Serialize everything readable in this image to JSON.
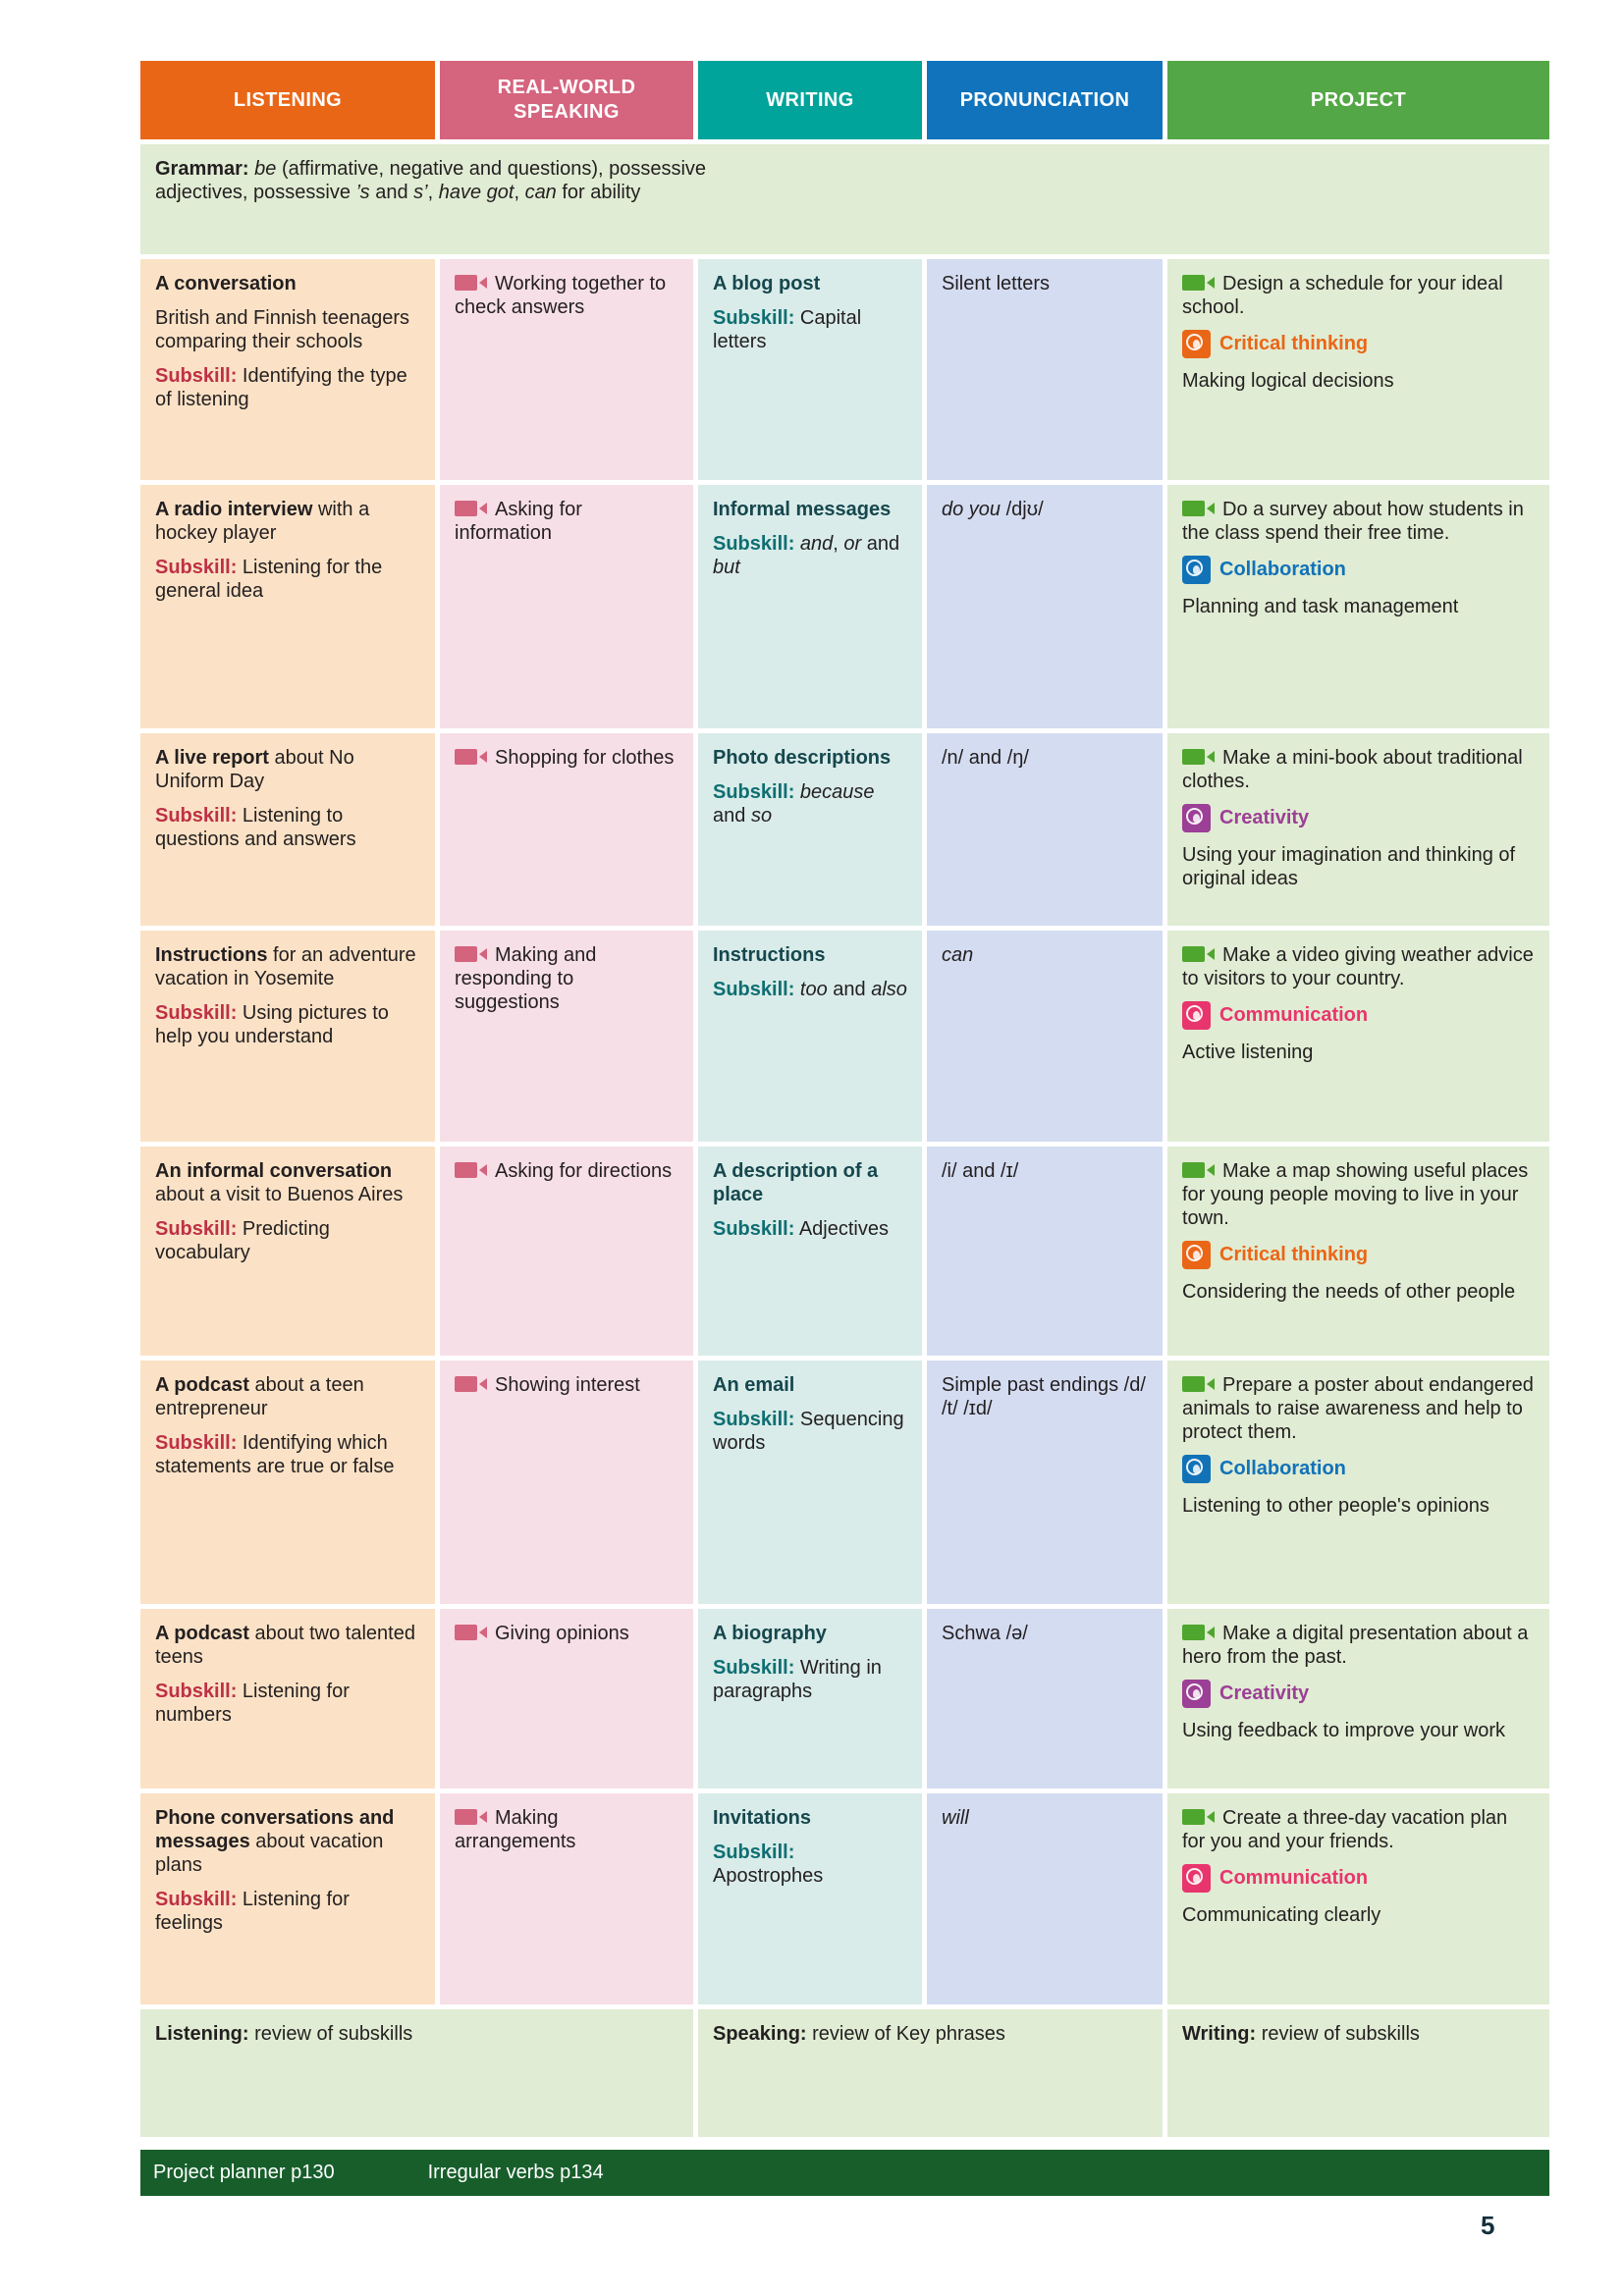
{
  "header": {
    "columns": [
      {
        "label": "LISTENING",
        "color": "#EA6617"
      },
      {
        "label": "REAL-WORLD SPEAKING",
        "color": "#D5647F"
      },
      {
        "label": "WRITING",
        "color": "#00A49A"
      },
      {
        "label": "PRONUNCIATION",
        "color": "#1173BC"
      },
      {
        "label": "PROJECT",
        "color": "#54A746"
      }
    ]
  },
  "colors": {
    "listening_bg": "#FBE2C6",
    "speaking_bg": "#F7DFE7",
    "writing_bg": "#D9ECE9",
    "pronunciation_bg": "#D4DCF1",
    "project_bg": "#E0ECD3",
    "subskill_red": "#BE3045",
    "subskill_teal": "#0E6E72",
    "critical_thinking": "#EA6617",
    "collaboration": "#1272B8",
    "creativity": "#9C3F96",
    "communication": "#E8356D",
    "footer_green": "#175E2B"
  },
  "grammar": [
    [
      {
        "t": "Grammar:",
        "s": "b"
      },
      {
        "t": " "
      },
      {
        "t": "be",
        "s": "i"
      },
      {
        "t": " (affirmative, negative and questions), possessive adjectives, possessive "
      },
      {
        "t": "’s",
        "s": "i"
      },
      {
        "t": " and "
      },
      {
        "t": "s’",
        "s": "i"
      },
      {
        "t": ", "
      },
      {
        "t": "have got",
        "s": "i"
      },
      {
        "t": ", "
      },
      {
        "t": "can",
        "s": "i"
      },
      {
        "t": " for ability"
      }
    ]
  ],
  "rows": [
    {
      "listening": [
        [
          {
            "t": "A conversation",
            "s": "b"
          }
        ],
        [
          {
            "t": "British and Finnish teenagers comparing their schools"
          }
        ],
        [
          {
            "t": "Subskill:",
            "s": "lred"
          },
          {
            "t": " Identifying the type of listening"
          }
        ]
      ],
      "speaking": [
        [
          {
            "ic": "cam-pink"
          },
          {
            "t": "Working together to check answers"
          }
        ]
      ],
      "writing": [
        [
          {
            "t": "A blog post",
            "s": "bteal"
          }
        ],
        [
          {
            "t": "Subskill:",
            "s": "lteal"
          },
          {
            "t": " Capital letters"
          }
        ]
      ],
      "pronunciation": [
        [
          {
            "t": "Silent letters"
          }
        ]
      ],
      "project": [
        [
          {
            "ic": "cam-green"
          },
          {
            "t": "Design a schedule for your ideal school."
          }
        ],
        [
          {
            "ic": "ct"
          },
          {
            "t": "Critical thinking",
            "s": "lct"
          }
        ],
        [
          {
            "t": "Making logical decisions"
          }
        ]
      ]
    },
    {
      "listening": [
        [
          {
            "t": "A radio interview",
            "s": "b"
          },
          {
            "t": " with a hockey player"
          }
        ],
        [
          {
            "t": "Subskill:",
            "s": "lred"
          },
          {
            "t": " Listening for the general idea"
          }
        ]
      ],
      "speaking": [
        [
          {
            "ic": "cam-pink"
          },
          {
            "t": "Asking for information"
          }
        ]
      ],
      "writing": [
        [
          {
            "t": "Informal messages",
            "s": "bteal"
          }
        ],
        [
          {
            "t": "Subskill:",
            "s": "lteal"
          },
          {
            "t": " "
          },
          {
            "t": "and",
            "s": "i"
          },
          {
            "t": ", "
          },
          {
            "t": "or",
            "s": "i"
          },
          {
            "t": " and "
          },
          {
            "t": "but",
            "s": "i"
          }
        ]
      ],
      "pronunciation": [
        [
          {
            "t": "do you",
            "s": "i"
          },
          {
            "t": " /djʊ/"
          }
        ]
      ],
      "project": [
        [
          {
            "ic": "cam-green"
          },
          {
            "t": "Do a survey about how students in the class spend their free time."
          }
        ],
        [
          {
            "ic": "collab"
          },
          {
            "t": "Collaboration",
            "s": "lcollab"
          }
        ],
        [
          {
            "t": "Planning and task management"
          }
        ]
      ]
    },
    {
      "listening": [
        [
          {
            "t": "A live report",
            "s": "b"
          },
          {
            "t": " about No Uniform Day"
          }
        ],
        [
          {
            "t": "Subskill:",
            "s": "lred"
          },
          {
            "t": " Listening to questions and answers"
          }
        ]
      ],
      "speaking": [
        [
          {
            "ic": "cam-pink"
          },
          {
            "t": "Shopping for clothes"
          }
        ]
      ],
      "writing": [
        [
          {
            "t": "Photo descriptions",
            "s": "bteal"
          }
        ],
        [
          {
            "t": "Subskill:",
            "s": "lteal"
          },
          {
            "t": " "
          },
          {
            "t": "because",
            "s": "i"
          },
          {
            "t": " and "
          },
          {
            "t": "so",
            "s": "i"
          }
        ]
      ],
      "pronunciation": [
        [
          {
            "t": "/n/ and /ŋ/"
          }
        ]
      ],
      "project": [
        [
          {
            "ic": "cam-green"
          },
          {
            "t": "Make a mini-book about traditional clothes."
          }
        ],
        [
          {
            "ic": "creat"
          },
          {
            "t": "Creativity",
            "s": "lcreat"
          }
        ],
        [
          {
            "t": "Using your imagination and thinking of original ideas"
          }
        ]
      ]
    },
    {
      "listening": [
        [
          {
            "t": "Instructions",
            "s": "b"
          },
          {
            "t": " for an adventure vacation in Yosemite"
          }
        ],
        [
          {
            "t": "Subskill:",
            "s": "lred"
          },
          {
            "t": " Using pictures to help you understand"
          }
        ]
      ],
      "speaking": [
        [
          {
            "ic": "cam-pink"
          },
          {
            "t": "Making and responding to suggestions"
          }
        ]
      ],
      "writing": [
        [
          {
            "t": "Instructions",
            "s": "bteal"
          }
        ],
        [
          {
            "t": "Subskill:",
            "s": "lteal"
          },
          {
            "t": " "
          },
          {
            "t": "too",
            "s": "i"
          },
          {
            "t": " and "
          },
          {
            "t": "also",
            "s": "i"
          }
        ]
      ],
      "pronunciation": [
        [
          {
            "t": "can",
            "s": "i"
          }
        ]
      ],
      "project": [
        [
          {
            "ic": "cam-green"
          },
          {
            "t": "Make a video giving weather advice to visitors to your country."
          }
        ],
        [
          {
            "ic": "comm"
          },
          {
            "t": "Communication",
            "s": "lcomm"
          }
        ],
        [
          {
            "t": "Active listening"
          }
        ]
      ]
    },
    {
      "listening": [
        [
          {
            "t": "An informal conversation",
            "s": "b"
          },
          {
            "t": " about a visit to Buenos Aires"
          }
        ],
        [
          {
            "t": "Subskill:",
            "s": "lred"
          },
          {
            "t": " Predicting vocabulary"
          }
        ]
      ],
      "speaking": [
        [
          {
            "ic": "cam-pink"
          },
          {
            "t": "Asking for directions"
          }
        ]
      ],
      "writing": [
        [
          {
            "t": "A description of a place",
            "s": "bteal"
          }
        ],
        [
          {
            "t": "Subskill:",
            "s": "lteal"
          },
          {
            "t": " Adjectives"
          }
        ]
      ],
      "pronunciation": [
        [
          {
            "t": "/i/ and /ɪ/"
          }
        ]
      ],
      "project": [
        [
          {
            "ic": "cam-green"
          },
          {
            "t": "Make a map showing useful places for young people moving to live in your town."
          }
        ],
        [
          {
            "ic": "ct"
          },
          {
            "t": "Critical thinking",
            "s": "lct"
          }
        ],
        [
          {
            "t": "Considering the needs of other people"
          }
        ]
      ]
    },
    {
      "listening": [
        [
          {
            "t": "A podcast",
            "s": "b"
          },
          {
            "t": " about a teen entrepreneur"
          }
        ],
        [
          {
            "t": "Subskill:",
            "s": "lred"
          },
          {
            "t": " Identifying which statements are true or false"
          }
        ]
      ],
      "speaking": [
        [
          {
            "ic": "cam-pink"
          },
          {
            "t": "Showing interest"
          }
        ]
      ],
      "writing": [
        [
          {
            "t": "An email",
            "s": "bteal"
          }
        ],
        [
          {
            "t": "Subskill:",
            "s": "lteal"
          },
          {
            "t": " Sequencing words"
          }
        ]
      ],
      "pronunciation": [
        [
          {
            "t": "Simple past endings /d/ /t/ /ɪd/"
          }
        ]
      ],
      "project": [
        [
          {
            "ic": "cam-green"
          },
          {
            "t": "Prepare a poster about endangered animals to raise awareness and help to protect them."
          }
        ],
        [
          {
            "ic": "collab"
          },
          {
            "t": "Collaboration",
            "s": "lcollab"
          }
        ],
        [
          {
            "t": "Listening to other people's opinions"
          }
        ]
      ]
    },
    {
      "listening": [
        [
          {
            "t": "A podcast",
            "s": "b"
          },
          {
            "t": " about two talented teens"
          }
        ],
        [
          {
            "t": "Subskill:",
            "s": "lred"
          },
          {
            "t": " Listening for numbers"
          }
        ]
      ],
      "speaking": [
        [
          {
            "ic": "cam-pink"
          },
          {
            "t": "Giving opinions"
          }
        ]
      ],
      "writing": [
        [
          {
            "t": "A biography",
            "s": "bteal"
          }
        ],
        [
          {
            "t": "Subskill:",
            "s": "lteal"
          },
          {
            "t": " Writing in paragraphs"
          }
        ]
      ],
      "pronunciation": [
        [
          {
            "t": "Schwa /ə/"
          }
        ]
      ],
      "project": [
        [
          {
            "ic": "cam-green"
          },
          {
            "t": "Make a digital presentation about a hero from the past."
          }
        ],
        [
          {
            "ic": "creat"
          },
          {
            "t": "Creativity",
            "s": "lcreat"
          }
        ],
        [
          {
            "t": "Using feedback to improve your work"
          }
        ]
      ]
    },
    {
      "listening": [
        [
          {
            "t": "Phone conversations and messages",
            "s": "b"
          },
          {
            "t": " about vacation plans"
          }
        ],
        [
          {
            "t": "Subskill:",
            "s": "lred"
          },
          {
            "t": " Listening for feelings"
          }
        ]
      ],
      "speaking": [
        [
          {
            "ic": "cam-pink"
          },
          {
            "t": "Making arrangements"
          }
        ]
      ],
      "writing": [
        [
          {
            "t": "Invitations",
            "s": "bteal"
          }
        ],
        [
          {
            "t": "Subskill:",
            "s": "lteal"
          },
          {
            "t": " Apostrophes"
          }
        ]
      ],
      "pronunciation": [
        [
          {
            "t": "will",
            "s": "i"
          }
        ]
      ],
      "project": [
        [
          {
            "ic": "cam-green"
          },
          {
            "t": "Create a three-day vacation plan for you and your friends."
          }
        ],
        [
          {
            "ic": "comm"
          },
          {
            "t": "Communication",
            "s": "lcomm"
          }
        ],
        [
          {
            "t": "Communicating clearly"
          }
        ]
      ]
    }
  ],
  "review": {
    "listening": [
      [
        {
          "t": "Listening:",
          "s": "b"
        },
        {
          "t": " review of subskills"
        }
      ]
    ],
    "speaking": [
      [
        {
          "t": "Speaking:",
          "s": "b"
        },
        {
          "t": " review of Key phrases"
        }
      ]
    ],
    "writing": [
      [
        {
          "t": "Writing:",
          "s": "b"
        },
        {
          "t": " review of subskills"
        }
      ]
    ]
  },
  "footer": {
    "color": "#175E2B",
    "items": [
      "Project planner p130",
      "Irregular verbs p134"
    ]
  },
  "page_number": "5"
}
